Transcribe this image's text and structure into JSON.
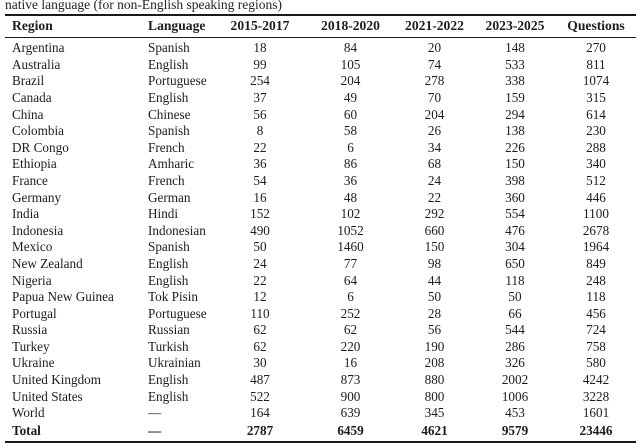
{
  "caption": {
    "text": "native language (for non-English speaking regions)"
  },
  "table": {
    "columns": [
      "Region",
      "Language",
      "2015-2017",
      "2018-2020",
      "2021-2022",
      "2023-2025",
      "Questions"
    ],
    "aligns": [
      "left",
      "left",
      "center",
      "center",
      "center",
      "center",
      "center"
    ],
    "rows": [
      [
        "Argentina",
        "Spanish",
        "18",
        "84",
        "20",
        "148",
        "270"
      ],
      [
        "Australia",
        "English",
        "99",
        "105",
        "74",
        "533",
        "811"
      ],
      [
        "Brazil",
        "Portuguese",
        "254",
        "204",
        "278",
        "338",
        "1074"
      ],
      [
        "Canada",
        "English",
        "37",
        "49",
        "70",
        "159",
        "315"
      ],
      [
        "China",
        "Chinese",
        "56",
        "60",
        "204",
        "294",
        "614"
      ],
      [
        "Colombia",
        "Spanish",
        "8",
        "58",
        "26",
        "138",
        "230"
      ],
      [
        "DR Congo",
        "French",
        "22",
        "6",
        "34",
        "226",
        "288"
      ],
      [
        "Ethiopia",
        "Amharic",
        "36",
        "86",
        "68",
        "150",
        "340"
      ],
      [
        "France",
        "French",
        "54",
        "36",
        "24",
        "398",
        "512"
      ],
      [
        "Germany",
        "German",
        "16",
        "48",
        "22",
        "360",
        "446"
      ],
      [
        "India",
        "Hindi",
        "152",
        "102",
        "292",
        "554",
        "1100"
      ],
      [
        "Indonesia",
        "Indonesian",
        "490",
        "1052",
        "660",
        "476",
        "2678"
      ],
      [
        "Mexico",
        "Spanish",
        "50",
        "1460",
        "150",
        "304",
        "1964"
      ],
      [
        "New Zealand",
        "English",
        "24",
        "77",
        "98",
        "650",
        "849"
      ],
      [
        "Nigeria",
        "English",
        "22",
        "64",
        "44",
        "118",
        "248"
      ],
      [
        "Papua New Guinea",
        "Tok Pisin",
        "12",
        "6",
        "50",
        "50",
        "118"
      ],
      [
        "Portugal",
        "Portuguese",
        "110",
        "252",
        "28",
        "66",
        "456"
      ],
      [
        "Russia",
        "Russian",
        "62",
        "62",
        "56",
        "544",
        "724"
      ],
      [
        "Turkey",
        "Turkish",
        "62",
        "220",
        "190",
        "286",
        "758"
      ],
      [
        "Ukraine",
        "Ukrainian",
        "30",
        "16",
        "208",
        "326",
        "580"
      ],
      [
        "United Kingdom",
        "English",
        "487",
        "873",
        "880",
        "2002",
        "4242"
      ],
      [
        "United States",
        "English",
        "522",
        "900",
        "800",
        "1006",
        "3228"
      ],
      [
        "World",
        "—",
        "164",
        "639",
        "345",
        "453",
        "1601"
      ]
    ],
    "total_row": [
      "Total",
      "—",
      "2787",
      "6459",
      "4621",
      "9579",
      "23446"
    ]
  }
}
